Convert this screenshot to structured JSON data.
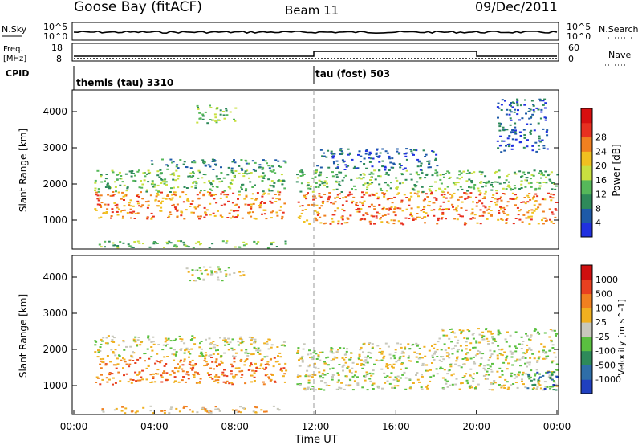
{
  "header": {
    "station": "Goose Bay (fitACF)",
    "beam": "Beam 11",
    "date": "09/Dec/2011"
  },
  "top_panels": {
    "nsky_label": "N.Sky",
    "nsky_ticks": [
      "10^5",
      "10^0"
    ],
    "nsearch_label": "N.Search",
    "nsearch_ticks": [
      "10^5",
      "10^0"
    ],
    "freq_label": "Freq.",
    "freq_unit": "[MHz]",
    "freq_ticks": [
      "18",
      "8"
    ],
    "nave_label": "Nave",
    "nave_ticks": [
      "60",
      "0"
    ],
    "cpid_label": "CPID",
    "cpid_segments": [
      {
        "name": "themis (tau) 3310"
      },
      {
        "name": "tau (fost) 503"
      }
    ]
  },
  "chart_data": [
    {
      "type": "heatmap",
      "panel": "power",
      "ylabel": "Slant Range [km]",
      "yticks": [
        "1000",
        "2000",
        "3000",
        "4000"
      ],
      "ylim": [
        200,
        4600
      ],
      "colorbar_label": "Power [dB]",
      "colorbar_ticks": [
        "4",
        "8",
        "12",
        "16",
        "20",
        "24",
        "28"
      ],
      "colors": [
        "#2030e0",
        "#1e5aa8",
        "#2e8a5a",
        "#56b85a",
        "#c8e040",
        "#f0c020",
        "#f08020",
        "#e83020",
        "#d81010"
      ],
      "bands": [
        {
          "x0": 1.0,
          "x1": 10.5,
          "y0": 1050,
          "y1": 1800,
          "level": 6
        },
        {
          "x0": 1.0,
          "x1": 10.5,
          "y0": 1800,
          "y1": 2400,
          "level": 3
        },
        {
          "x0": 3.8,
          "x1": 10.5,
          "y0": 2400,
          "y1": 2700,
          "level": 2
        },
        {
          "x0": 6.0,
          "x1": 8.0,
          "y0": 3700,
          "y1": 4200,
          "level": 3
        },
        {
          "x0": 11.0,
          "x1": 24.0,
          "y0": 900,
          "y1": 1800,
          "level": 6
        },
        {
          "x0": 11.0,
          "x1": 24.0,
          "y0": 1800,
          "y1": 2400,
          "level": 3
        },
        {
          "x0": 12.0,
          "x1": 18.0,
          "y0": 2400,
          "y1": 3000,
          "level": 1
        },
        {
          "x0": 21.0,
          "x1": 23.5,
          "y0": 2900,
          "y1": 4400,
          "level": 1
        },
        {
          "x0": 1.0,
          "x1": 10.5,
          "y0": 250,
          "y1": 450,
          "level": 3
        }
      ]
    },
    {
      "type": "heatmap",
      "panel": "velocity",
      "ylabel": "Slant Range [km]",
      "yticks": [
        "1000",
        "2000",
        "3000",
        "4000"
      ],
      "ylim": [
        200,
        4600
      ],
      "xlabel": "Time UT",
      "xticks": [
        "00:00",
        "04:00",
        "08:00",
        "12:00",
        "16:00",
        "20:00",
        "00:00"
      ],
      "xlim": [
        0,
        24
      ],
      "colorbar_label": "Velocity [m s^-1]",
      "colorbar_ticks": [
        "1000",
        "500",
        "100",
        "25",
        "-25",
        "-100",
        "-500",
        "-1000"
      ],
      "colors": [
        "#2040c0",
        "#2e6ea8",
        "#2e8a5a",
        "#5ac040",
        "#c8c8bc",
        "#f0b020",
        "#f08020",
        "#e84020",
        "#d01010"
      ],
      "bands": [
        {
          "x0": 1.0,
          "x1": 10.5,
          "y0": 1050,
          "y1": 1800,
          "level": 6
        },
        {
          "x0": 1.0,
          "x1": 10.5,
          "y0": 1800,
          "y1": 2400,
          "level": 4
        },
        {
          "x0": 11.0,
          "x1": 24.0,
          "y0": 900,
          "y1": 2200,
          "level": 4
        },
        {
          "x0": 18.0,
          "x1": 24.0,
          "y0": 2200,
          "y1": 2600,
          "level": 4
        },
        {
          "x0": 22.5,
          "x1": 24.0,
          "y0": 900,
          "y1": 1400,
          "level": 1
        },
        {
          "x0": 5.5,
          "x1": 8.5,
          "y0": 3900,
          "y1": 4300,
          "level": 4
        },
        {
          "x0": 1.0,
          "x1": 10.5,
          "y0": 250,
          "y1": 450,
          "level": 5
        }
      ]
    }
  ]
}
